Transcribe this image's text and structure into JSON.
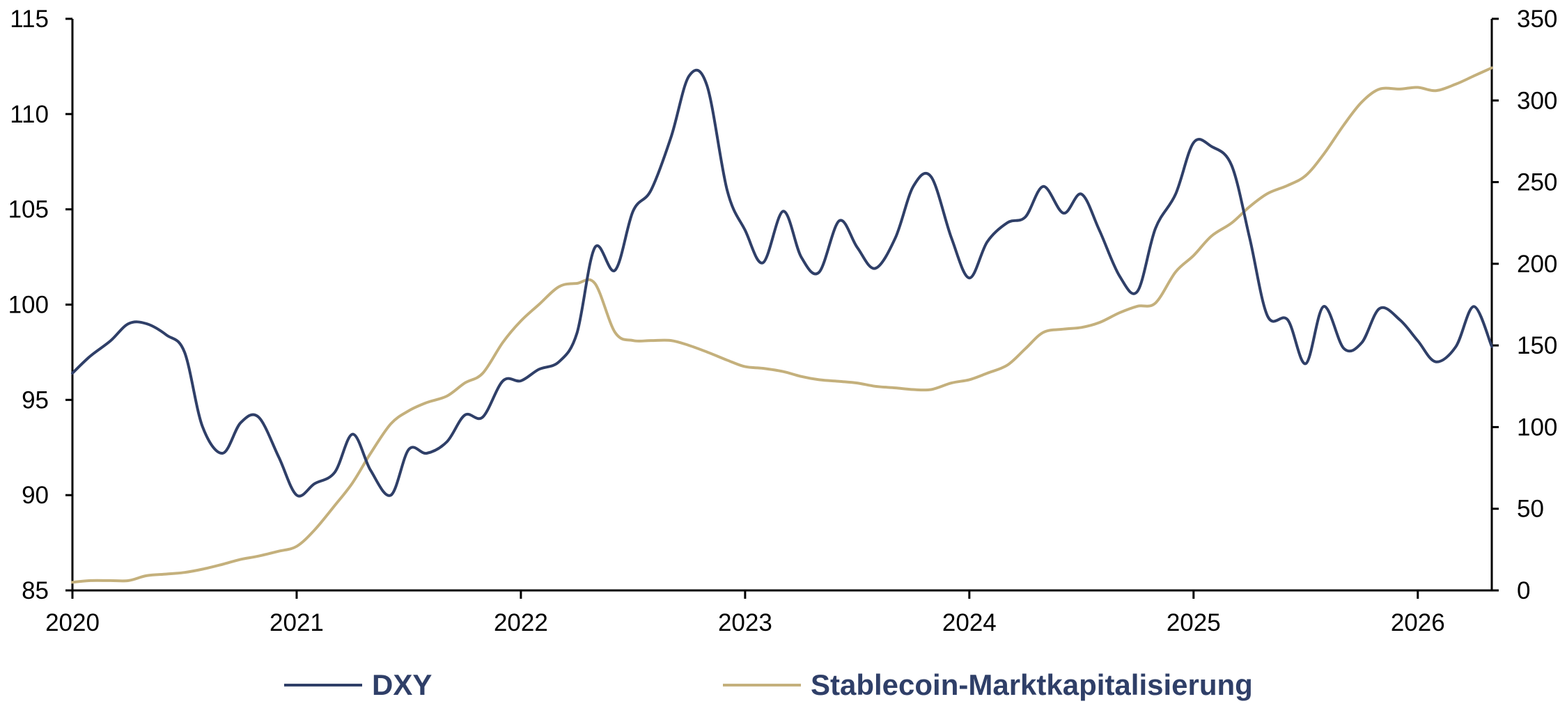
{
  "chart_data": {
    "type": "line",
    "title": "",
    "x_axis": {
      "tick_labels": [
        "2020",
        "2021",
        "2022",
        "2023",
        "2024",
        "2025",
        "2026"
      ],
      "range": [
        2020.0,
        2026.33
      ]
    },
    "y_axis_left": {
      "range": [
        85,
        115
      ],
      "tick_labels": [
        "85",
        "90",
        "95",
        "100",
        "105",
        "110",
        "115"
      ]
    },
    "y_axis_right": {
      "range": [
        0,
        350
      ],
      "tick_labels": [
        "0",
        "50",
        "100",
        "150",
        "200",
        "250",
        "300",
        "350"
      ]
    },
    "grid": false,
    "legend_position": "bottom",
    "series": [
      {
        "name": "DXY",
        "axis": "left",
        "color": "#2f3f68",
        "points": [
          [
            2020.0,
            96.4
          ],
          [
            2020.08,
            97.3
          ],
          [
            2020.17,
            98.1
          ],
          [
            2020.25,
            99.0
          ],
          [
            2020.33,
            99.0
          ],
          [
            2020.42,
            98.4
          ],
          [
            2020.5,
            97.5
          ],
          [
            2020.58,
            93.6
          ],
          [
            2020.67,
            92.2
          ],
          [
            2020.75,
            93.8
          ],
          [
            2020.83,
            94.1
          ],
          [
            2020.92,
            92.0
          ],
          [
            2021.0,
            90.0
          ],
          [
            2021.08,
            90.6
          ],
          [
            2021.17,
            91.2
          ],
          [
            2021.25,
            93.2
          ],
          [
            2021.33,
            91.3
          ],
          [
            2021.42,
            90.0
          ],
          [
            2021.5,
            92.4
          ],
          [
            2021.58,
            92.2
          ],
          [
            2021.67,
            92.8
          ],
          [
            2021.75,
            94.2
          ],
          [
            2021.83,
            94.1
          ],
          [
            2021.92,
            96.0
          ],
          [
            2022.0,
            96.0
          ],
          [
            2022.08,
            96.6
          ],
          [
            2022.17,
            97.0
          ],
          [
            2022.25,
            98.5
          ],
          [
            2022.33,
            103.0
          ],
          [
            2022.42,
            101.8
          ],
          [
            2022.5,
            104.9
          ],
          [
            2022.58,
            106.0
          ],
          [
            2022.67,
            108.8
          ],
          [
            2022.75,
            112.0
          ],
          [
            2022.83,
            111.5
          ],
          [
            2022.92,
            106.0
          ],
          [
            2023.0,
            103.9
          ],
          [
            2023.08,
            102.2
          ],
          [
            2023.17,
            104.9
          ],
          [
            2023.25,
            102.5
          ],
          [
            2023.33,
            101.7
          ],
          [
            2023.42,
            104.4
          ],
          [
            2023.5,
            103.0
          ],
          [
            2023.58,
            101.9
          ],
          [
            2023.67,
            103.5
          ],
          [
            2023.75,
            106.2
          ],
          [
            2023.83,
            106.7
          ],
          [
            2023.92,
            103.5
          ],
          [
            2024.0,
            101.4
          ],
          [
            2024.08,
            103.3
          ],
          [
            2024.17,
            104.3
          ],
          [
            2024.25,
            104.6
          ],
          [
            2024.33,
            106.2
          ],
          [
            2024.42,
            104.8
          ],
          [
            2024.5,
            105.8
          ],
          [
            2024.58,
            103.9
          ],
          [
            2024.67,
            101.5
          ],
          [
            2024.75,
            100.7
          ],
          [
            2024.83,
            104.0
          ],
          [
            2024.92,
            105.8
          ],
          [
            2025.0,
            108.5
          ],
          [
            2025.08,
            108.3
          ],
          [
            2025.17,
            107.3
          ],
          [
            2025.25,
            103.5
          ],
          [
            2025.33,
            99.4
          ],
          [
            2025.42,
            99.2
          ],
          [
            2025.5,
            96.9
          ],
          [
            2025.58,
            99.9
          ],
          [
            2025.67,
            97.7
          ],
          [
            2025.75,
            98.0
          ],
          [
            2025.83,
            99.8
          ],
          [
            2025.92,
            99.2
          ],
          [
            2026.0,
            98.1
          ],
          [
            2026.08,
            97.0
          ],
          [
            2026.17,
            97.8
          ],
          [
            2026.25,
            99.9
          ],
          [
            2026.33,
            97.8
          ]
        ]
      },
      {
        "name": "Stablecoin-Marktkapitalisierung",
        "axis": "right",
        "color": "#c4b07c",
        "points": [
          [
            2020.0,
            5
          ],
          [
            2020.08,
            6
          ],
          [
            2020.17,
            6
          ],
          [
            2020.25,
            6
          ],
          [
            2020.33,
            9
          ],
          [
            2020.42,
            10
          ],
          [
            2020.5,
            11
          ],
          [
            2020.58,
            13
          ],
          [
            2020.67,
            16
          ],
          [
            2020.75,
            19
          ],
          [
            2020.83,
            21
          ],
          [
            2020.92,
            24
          ],
          [
            2021.0,
            27
          ],
          [
            2021.08,
            37
          ],
          [
            2021.17,
            52
          ],
          [
            2021.25,
            66
          ],
          [
            2021.33,
            84
          ],
          [
            2021.42,
            102
          ],
          [
            2021.5,
            110
          ],
          [
            2021.58,
            115
          ],
          [
            2021.67,
            119
          ],
          [
            2021.75,
            127
          ],
          [
            2021.83,
            133
          ],
          [
            2021.92,
            152
          ],
          [
            2022.0,
            165
          ],
          [
            2022.08,
            175
          ],
          [
            2022.17,
            186
          ],
          [
            2022.25,
            188
          ],
          [
            2022.33,
            188
          ],
          [
            2022.42,
            158
          ],
          [
            2022.5,
            153
          ],
          [
            2022.58,
            153
          ],
          [
            2022.67,
            153
          ],
          [
            2022.75,
            150
          ],
          [
            2022.83,
            146
          ],
          [
            2022.92,
            141
          ],
          [
            2023.0,
            137
          ],
          [
            2023.08,
            136
          ],
          [
            2023.17,
            134
          ],
          [
            2023.25,
            131
          ],
          [
            2023.33,
            129
          ],
          [
            2023.42,
            128
          ],
          [
            2023.5,
            127
          ],
          [
            2023.58,
            125
          ],
          [
            2023.67,
            124
          ],
          [
            2023.75,
            123
          ],
          [
            2023.83,
            123
          ],
          [
            2023.92,
            127
          ],
          [
            2024.0,
            129
          ],
          [
            2024.08,
            133
          ],
          [
            2024.17,
            138
          ],
          [
            2024.25,
            148
          ],
          [
            2024.33,
            158
          ],
          [
            2024.42,
            160
          ],
          [
            2024.5,
            161
          ],
          [
            2024.58,
            164
          ],
          [
            2024.67,
            170
          ],
          [
            2024.75,
            174
          ],
          [
            2024.83,
            176
          ],
          [
            2024.92,
            195
          ],
          [
            2025.0,
            205
          ],
          [
            2025.08,
            217
          ],
          [
            2025.17,
            225
          ],
          [
            2025.25,
            235
          ],
          [
            2025.33,
            243
          ],
          [
            2025.42,
            248
          ],
          [
            2025.5,
            254
          ],
          [
            2025.58,
            267
          ],
          [
            2025.67,
            285
          ],
          [
            2025.75,
            299
          ],
          [
            2025.83,
            307
          ],
          [
            2025.92,
            307
          ],
          [
            2026.0,
            308
          ],
          [
            2026.08,
            306
          ],
          [
            2026.17,
            310
          ],
          [
            2026.25,
            315
          ],
          [
            2026.33,
            320
          ]
        ]
      }
    ]
  }
}
